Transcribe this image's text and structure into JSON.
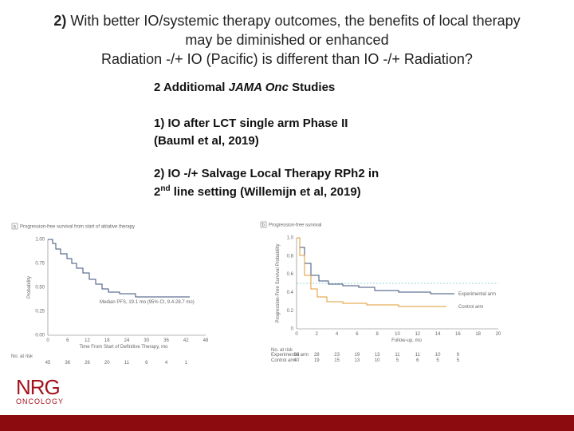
{
  "header": {
    "title_lead": "2)",
    "title_line1": "With better IO/systemic therapy outcomes, the benefits of local therapy",
    "title_line2": "may be diminished or enhanced",
    "title_line3": "Radiation -/+ IO (Pacific) is different than IO -/+ Radiation?"
  },
  "bullets": {
    "heading_pre": "2 Additiomal",
    "heading_em": "JAMA Onc",
    "heading_post": "Studies",
    "item1_line1": "1) IO after LCT single arm Phase II",
    "item1_line2": "(Bauml et al, 2019)",
    "item2_line1": "2) IO -/+ Salvage Local Therapy RPh2 in",
    "item2_num": "2",
    "item2_sup": "nd",
    "item2_rest": "line setting (Willemijn et al, 2019)"
  },
  "figure_a": {
    "label": "a",
    "title": "Progression-free survival from start of ablative therapy",
    "ylabel": "Probability",
    "yticks": [
      "1.00",
      "0.75",
      "0.50",
      "0.25",
      "0.00"
    ],
    "xticks": [
      "0",
      "6",
      "12",
      "18",
      "24",
      "30",
      "36",
      "42",
      "48"
    ],
    "xlabel": "Time From Start of Definitive Therapy, mo",
    "note": "Median PFS, 19.1 mo (95% CI, 9.4-28.7 mo)",
    "at_risk_label": "No. at risk",
    "at_risk": [
      "45",
      "36",
      "26",
      "20",
      "11",
      "6",
      "4",
      "1"
    ]
  },
  "figure_b": {
    "label": "b",
    "title": "Progression-free survival",
    "ylabel": "Progression-Free Survival Probability",
    "yticks": [
      "1.0",
      "0.8",
      "0.6",
      "0.4",
      "0.2",
      "0"
    ],
    "xticks": [
      "0",
      "2",
      "4",
      "6",
      "8",
      "10",
      "12",
      "14",
      "16",
      "18",
      "20"
    ],
    "xlabel": "Follow-up, mo",
    "series_exp": "Experimental arm",
    "series_ctrl": "Control arm",
    "at_risk_label": "No. at risk",
    "at_risk_rows": [
      {
        "name": "Experimental arm",
        "values": [
          "36",
          "28",
          "23",
          "19",
          "13",
          "11",
          "11",
          "10",
          "9"
        ]
      },
      {
        "name": "Control arm",
        "values": [
          "40",
          "19",
          "15",
          "13",
          "10",
          "5",
          "6",
          "5",
          "5"
        ]
      }
    ]
  },
  "logo": {
    "main": "NRG",
    "sub": "ONCOLOGY"
  }
}
